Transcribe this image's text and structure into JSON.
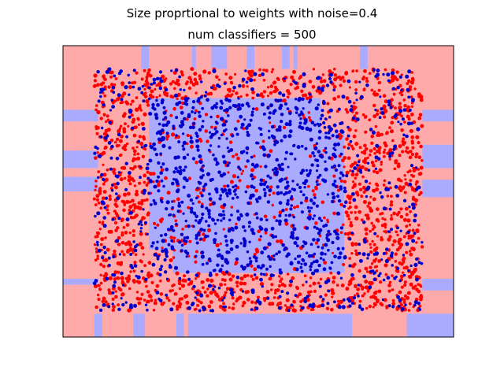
{
  "chart_data": {
    "type": "scatter",
    "title": "Size proprtional to weights with noise=0.4",
    "subtitle": "num classifiers = 500",
    "xlabel": "",
    "ylabel": "",
    "xlim": [
      0,
      1
    ],
    "ylim": [
      0,
      1
    ],
    "grid": false,
    "axis_ticks": false,
    "legend": "none",
    "colors": {
      "class_red": "#ff0000",
      "class_blue": "#0000cc",
      "region_red": "#ffaaaa",
      "region_blue": "#aaaaff"
    },
    "decision_regions": {
      "background_class": "red",
      "blue_bands": [
        {
          "axis": "x",
          "range": [
            0.08,
            0.1
          ],
          "extent": [
            0.0,
            0.08
          ]
        },
        {
          "axis": "x",
          "range": [
            0.18,
            0.21
          ],
          "extent": [
            0.0,
            0.08
          ]
        },
        {
          "axis": "x",
          "range": [
            0.29,
            0.31
          ],
          "extent": [
            0.0,
            0.08
          ]
        },
        {
          "axis": "x",
          "range": [
            0.43,
            0.45
          ],
          "extent": [
            0.0,
            0.08
          ]
        },
        {
          "axis": "x",
          "range": [
            0.32,
            0.74
          ],
          "extent": [
            0.0,
            0.08
          ]
        },
        {
          "axis": "x",
          "range": [
            0.88,
            1.0
          ],
          "extent": [
            0.0,
            0.08
          ]
        },
        {
          "axis": "x",
          "range": [
            0.2,
            0.22
          ],
          "extent": [
            0.92,
            1.0
          ]
        },
        {
          "axis": "x",
          "range": [
            0.33,
            0.34
          ],
          "extent": [
            0.92,
            1.0
          ]
        },
        {
          "axis": "x",
          "range": [
            0.38,
            0.42
          ],
          "extent": [
            0.92,
            1.0
          ]
        },
        {
          "axis": "x",
          "range": [
            0.47,
            0.49
          ],
          "extent": [
            0.92,
            1.0
          ]
        },
        {
          "axis": "x",
          "range": [
            0.56,
            0.58
          ],
          "extent": [
            0.92,
            1.0
          ]
        },
        {
          "axis": "x",
          "range": [
            0.59,
            0.6
          ],
          "extent": [
            0.92,
            1.0
          ]
        },
        {
          "axis": "x",
          "range": [
            0.76,
            0.78
          ],
          "extent": [
            0.92,
            1.0
          ]
        },
        {
          "axis": "y",
          "range": [
            0.74,
            0.78
          ],
          "extent": [
            0.0,
            0.09
          ]
        },
        {
          "axis": "y",
          "range": [
            0.58,
            0.64
          ],
          "extent": [
            0.0,
            0.09
          ]
        },
        {
          "axis": "y",
          "range": [
            0.5,
            0.55
          ],
          "extent": [
            0.0,
            0.09
          ]
        },
        {
          "axis": "y",
          "range": [
            0.18,
            0.2
          ],
          "extent": [
            0.0,
            0.09
          ]
        },
        {
          "axis": "y",
          "range": [
            0.74,
            0.78
          ],
          "extent": [
            0.92,
            1.0
          ]
        },
        {
          "axis": "y",
          "range": [
            0.58,
            0.66
          ],
          "extent": [
            0.92,
            1.0
          ]
        },
        {
          "axis": "y",
          "range": [
            0.48,
            0.54
          ],
          "extent": [
            0.92,
            1.0
          ]
        },
        {
          "axis": "y",
          "range": [
            0.16,
            0.2
          ],
          "extent": [
            0.92,
            1.0
          ]
        }
      ],
      "center_blue_region": {
        "x": [
          0.22,
          0.72
        ],
        "y": [
          0.22,
          0.82
        ]
      }
    },
    "series": [
      {
        "class": "red",
        "distribution": "outside center region",
        "x_range": [
          0.08,
          0.92
        ],
        "y_range": [
          0.09,
          0.92
        ],
        "approx_points": 1700
      },
      {
        "class": "blue",
        "distribution": "concentrated in center region",
        "x_range": [
          0.08,
          0.92
        ],
        "y_range": [
          0.09,
          0.92
        ],
        "approx_points": 1300
      }
    ]
  }
}
